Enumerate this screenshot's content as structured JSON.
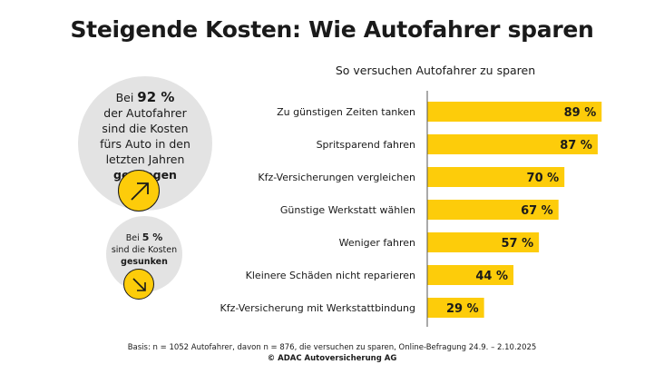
{
  "title": "Steigende Kosten: Wie Autofahrer sparen",
  "left": {
    "increase": {
      "prefix": "Bei",
      "value": "92 %",
      "text": "der Autofahrer sind die Kosten fürs Auto in den letzten Jahren",
      "emphasis": "gestiegen",
      "icon": "arrow-up-right-icon"
    },
    "decrease": {
      "prefix": "Bei",
      "value": "5 %",
      "text": "sind die Kosten",
      "emphasis": "gesunken",
      "icon": "arrow-down-right-icon"
    }
  },
  "chart_data": {
    "type": "bar",
    "orientation": "horizontal",
    "title": "So versuchen Autofahrer zu sparen",
    "categories": [
      "Zu günstigen Zeiten tanken",
      "Spritsparend fahren",
      "Kfz-Versicherungen vergleichen",
      "Günstige Werkstatt wählen",
      "Weniger fahren",
      "Kleinere Schäden nicht reparieren",
      "Kfz-Versicherung mit Werkstattbindung"
    ],
    "values": [
      89,
      87,
      70,
      67,
      57,
      44,
      29
    ],
    "labels": [
      "89 %",
      "87 %",
      "70 %",
      "67 %",
      "57 %",
      "44 %",
      "29 %"
    ],
    "unit": "%",
    "xlim": [
      0,
      100
    ],
    "grid": false,
    "bar_color": "#fdcc0a"
  },
  "footer": {
    "basis": "Basis: n = 1052 Autofahrer, davon n = 876, die versuchen zu sparen, Online-Befragung 24.9. – 2.10.2025",
    "copyright": "© ADAC Autoversicherung AG"
  }
}
